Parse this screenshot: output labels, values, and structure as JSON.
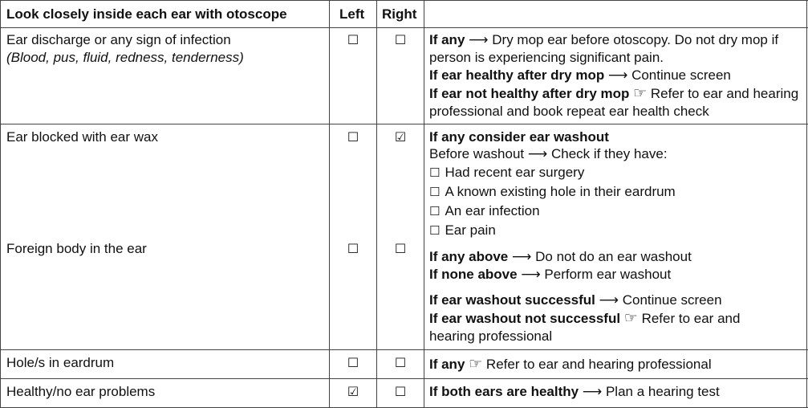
{
  "header": {
    "title": "Look closely inside each ear with otoscope",
    "left": "Left",
    "right": "Right"
  },
  "glyphs": {
    "arrow": "⟶",
    "hand": "☞",
    "unchecked": "☐",
    "checked": "☑"
  },
  "rows": [
    {
      "label": "Ear discharge or any sign of infection",
      "sublabel": "(Blood, pus, fluid, redness, tenderness)",
      "left": false,
      "right": false
    },
    {
      "label": "Ear blocked with ear wax",
      "left": false,
      "right": true
    },
    {
      "label": "Foreign body in the ear",
      "left": false,
      "right": false
    },
    {
      "label": "Hole/s in eardrum",
      "left": false,
      "right": false
    },
    {
      "label": "Healthy/no ear problems",
      "left": true,
      "right": false
    }
  ],
  "instructions": {
    "r1": [
      {
        "bold": "If any",
        "text": "Dry mop ear before otoscopy. Do not dry mop if person is experiencing significant pain."
      },
      {
        "bold": "If ear healthy after dry mop",
        "text": "Continue screen"
      },
      {
        "bold": "If ear not healthy after dry mop",
        "text": "Refer to ear and hearing professional and book repeat ear health check"
      }
    ],
    "r2": {
      "heading": "If any consider ear washout",
      "before": "Before washout",
      "before_text": "Check if they have:",
      "checklist": [
        "Had recent ear surgery",
        "A known existing hole in their eardrum",
        "An ear infection",
        "Ear pain"
      ],
      "any_above": {
        "bold": "If any above",
        "text": "Do not do an ear washout"
      },
      "none_above": {
        "bold": "If none above",
        "text": "Perform ear washout"
      },
      "success": {
        "bold": "If ear washout successful",
        "text": "Continue screen"
      },
      "fail": {
        "bold": "If ear washout not successful",
        "text": "Refer to ear and hearing professional"
      }
    },
    "r3": {
      "bold": "If any",
      "text": "Refer to ear and hearing professional"
    },
    "r4": {
      "bold": "If both ears are healthy",
      "text": "Plan a hearing test"
    }
  }
}
